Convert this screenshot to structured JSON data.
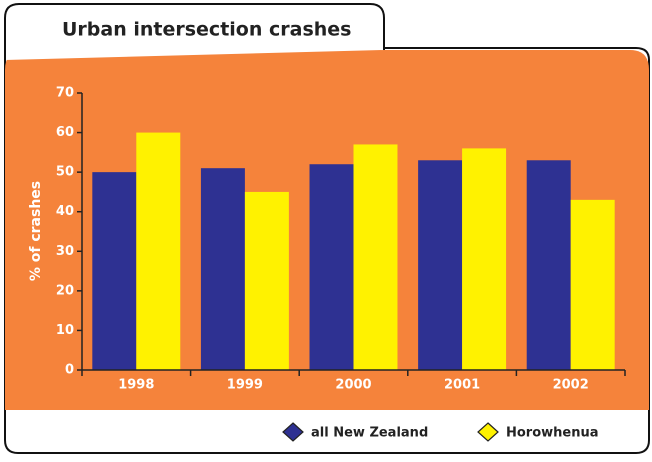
{
  "chart_data": {
    "type": "bar",
    "title": "Urban intersection crashes",
    "y_label": "% of crashes",
    "categories": [
      "1998",
      "1999",
      "2000",
      "2001",
      "2002"
    ],
    "series": [
      {
        "name": "all New Zealand",
        "color": "#2e3192",
        "values": [
          50,
          51,
          52,
          53,
          53
        ]
      },
      {
        "name": "Horowhenua",
        "color": "#fff200",
        "values": [
          60,
          45,
          57,
          56,
          43
        ]
      }
    ],
    "ylim": [
      0,
      70
    ],
    "yticks": [
      0,
      10,
      20,
      30,
      40,
      50,
      60,
      70
    ],
    "grid": false,
    "legend": "bottom-right",
    "background": "#f5833b"
  }
}
